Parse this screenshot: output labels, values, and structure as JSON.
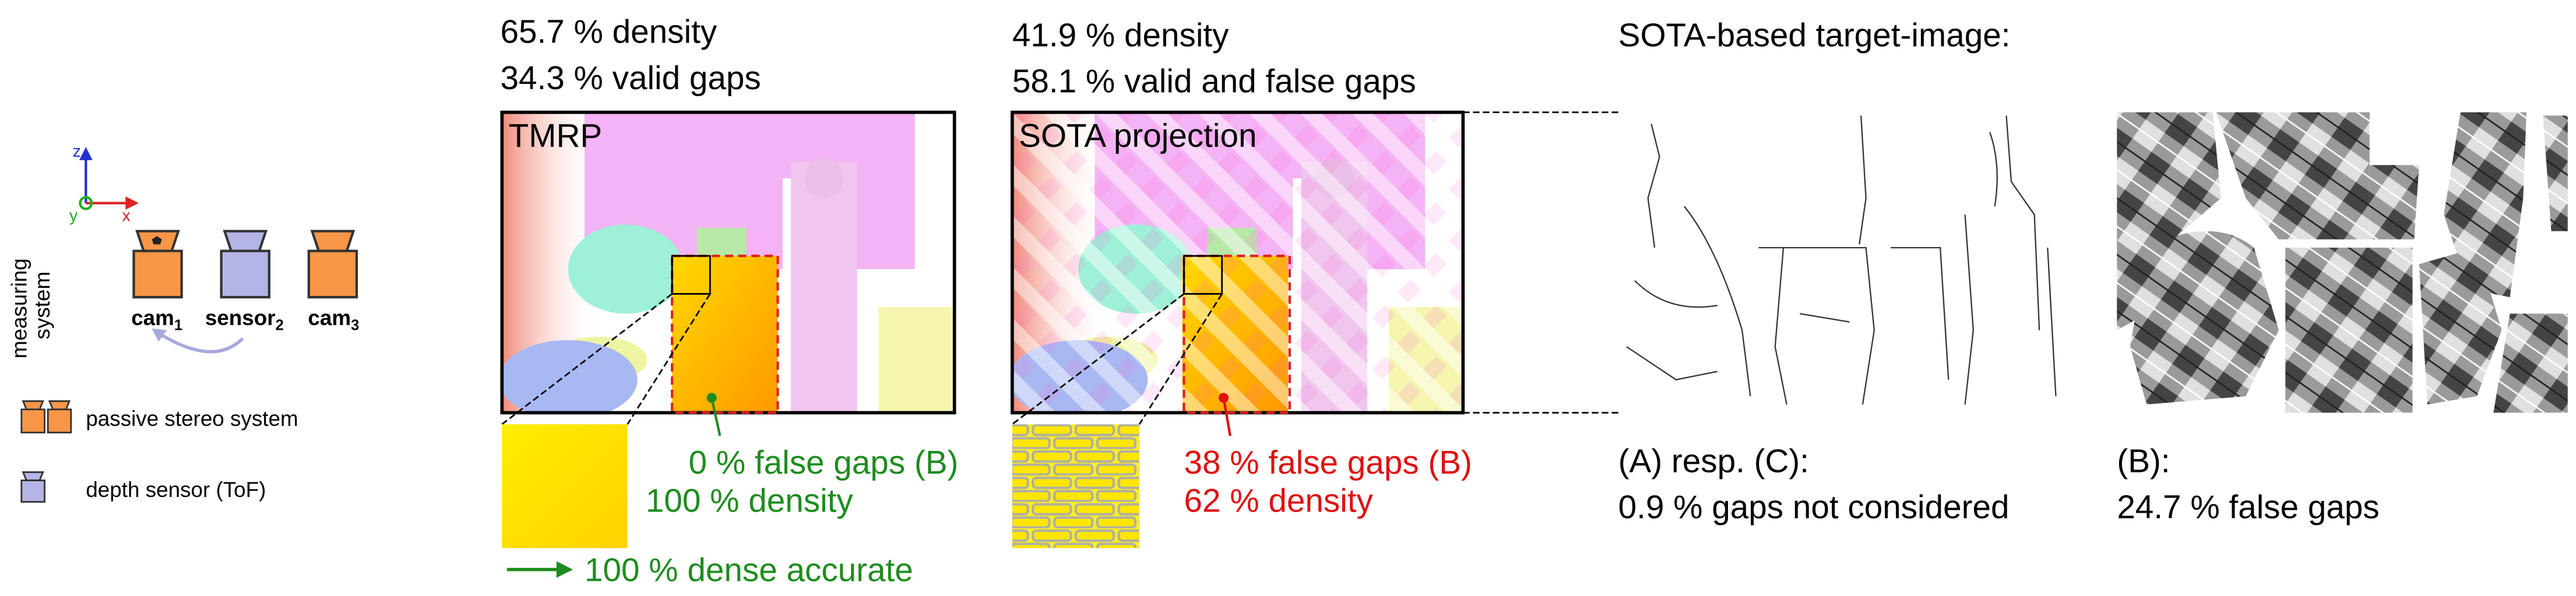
{
  "system": {
    "caption": [
      "measuring",
      "system"
    ],
    "axes": {
      "z": "z",
      "x": "x",
      "y": "y"
    },
    "devices": [
      {
        "label": "cam",
        "subscript": "1"
      },
      {
        "label": "sensor",
        "subscript": "2"
      },
      {
        "label": "cam",
        "subscript": "3"
      }
    ],
    "legend": [
      "passive stereo system",
      "depth sensor (ToF)"
    ]
  },
  "panels": [
    {
      "stats": [
        "65.7 % density",
        "34.3 % valid gaps"
      ],
      "title": "TMRP",
      "zoom_stats": [
        "0 % false gaps (B)",
        "100 % density"
      ],
      "note": "100 % dense accurate"
    },
    {
      "stats": [
        "41.9 % density",
        "58.1 % valid and false gaps"
      ],
      "title": "SOTA projection",
      "zoom_stats": [
        "38 % false gaps (B)",
        "62 % density"
      ]
    }
  ],
  "target": {
    "title": "SOTA-based target-image:",
    "images": [
      {
        "label": "(A) resp. (C):",
        "stat": "0.9 % gaps not considered"
      },
      {
        "label": "(B):",
        "stat": "24.7 % false gaps"
      }
    ]
  }
}
